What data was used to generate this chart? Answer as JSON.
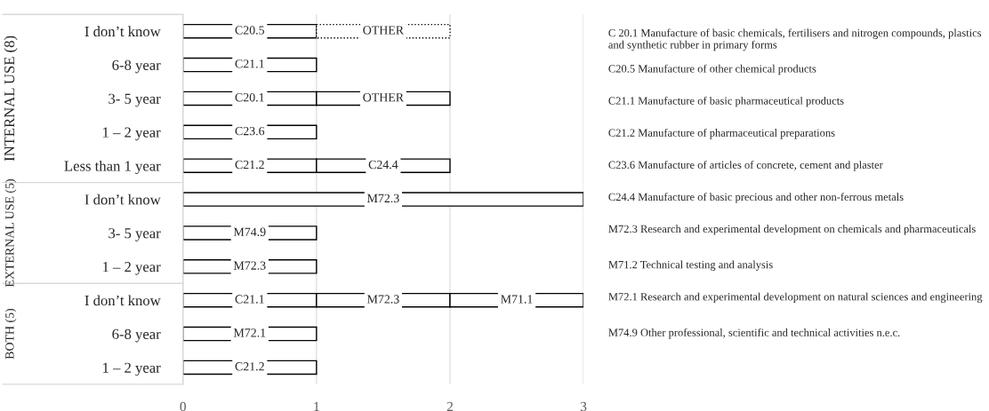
{
  "chart_data": {
    "type": "bar",
    "orientation": "horizontal",
    "stacked": true,
    "categories": [
      "I don’t know",
      "6-8 year",
      "3- 5 year",
      "1 – 2 year",
      "Less than 1 year",
      "I don’t know",
      "3- 5 year",
      "1 – 2 year",
      "I don’t know",
      "6-8 year",
      "1 – 2 year"
    ],
    "series": [
      {
        "color": "#ffffff",
        "values": [
          1,
          1,
          1,
          1,
          1,
          3,
          1,
          1,
          1,
          1,
          1
        ],
        "value_labels": [
          "C20.5",
          "C21.1",
          "C20.1",
          "C23.6",
          "C21.2",
          "M72.3",
          "M74.9",
          "M72.3",
          "C21.1",
          "M72.1",
          "C21.2"
        ]
      },
      {
        "color": "#ffffff",
        "line_style": "dotted",
        "values": [
          1,
          null,
          null,
          null,
          null,
          null,
          null,
          null,
          null,
          null,
          null
        ],
        "value_labels": [
          "OTHER",
          null,
          null,
          null,
          null,
          null,
          null,
          null,
          null,
          null,
          null
        ]
      },
      {
        "color": "#ffffff",
        "values": [
          null,
          null,
          1,
          null,
          1,
          null,
          null,
          null,
          1,
          null,
          null
        ],
        "value_labels": [
          null,
          null,
          "OTHER",
          null,
          "C24.4",
          null,
          null,
          null,
          "M72.3",
          null,
          null
        ]
      },
      {
        "color": "#ffffff",
        "values": [
          null,
          null,
          null,
          null,
          null,
          null,
          null,
          null,
          1,
          null,
          null
        ],
        "value_labels": [
          null,
          null,
          null,
          null,
          null,
          null,
          null,
          null,
          "M71.1",
          null,
          null
        ]
      }
    ],
    "xlim": [
      0,
      3
    ],
    "xticks": [
      0,
      1,
      2,
      3
    ],
    "grid": "x",
    "legend": false,
    "annotations": [
      "INTERNAL USE (8)",
      "EXTERNAL USE (5)",
      "BOTH (5)",
      "C 20.1 Manufacture of basic chemicals, fertilisers and nitrogen compounds, plastics and synthetic rubber in primary forms",
      "C20.5 Manufacture of other chemical products",
      "C21.1 Manufacture of basic pharmaceutical products",
      "C21.2 Manufacture of pharmaceutical preparations",
      "C23.6 Manufacture of articles of concrete, cement and plaster",
      "C24.4 Manufacture of basic precious and other non-ferrous metals",
      "M72.3 Research and experimental development on chemicals and pharmaceuticals",
      "M71.2 Technical testing and analysis",
      "M72.1 Research and experimental development on natural sciences and engineering",
      "M74.9 Other professional, scientific and technical activities n.e.c."
    ]
  }
}
